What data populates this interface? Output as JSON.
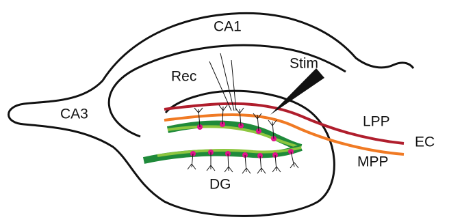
{
  "labels": {
    "ca1": "CA1",
    "ca3": "CA3",
    "rec": "Rec",
    "stim": "Stim",
    "lpp": "LPP",
    "mpp": "MPP",
    "ec": "EC",
    "dg": "DG"
  }
}
